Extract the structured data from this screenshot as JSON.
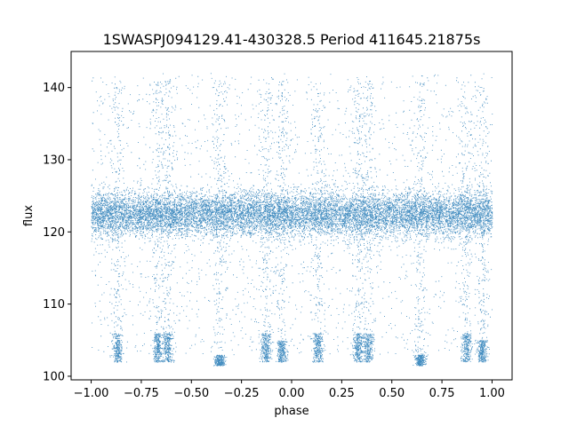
{
  "chart_data": {
    "type": "scatter",
    "title": "1SWASPJ094129.41-430328.5 Period 411645.21875s",
    "xlabel": "phase",
    "ylabel": "flux",
    "xlim": [
      -1.1,
      1.1
    ],
    "ylim": [
      99.5,
      145
    ],
    "xticks": [
      -1.0,
      -0.75,
      -0.5,
      -0.25,
      0.0,
      0.25,
      0.5,
      0.75,
      1.0
    ],
    "xtick_labels": [
      "−1.00",
      "−0.75",
      "−0.50",
      "−0.25",
      "0.00",
      "0.25",
      "0.50",
      "0.75",
      "1.00"
    ],
    "yticks": [
      100,
      110,
      120,
      130,
      140
    ],
    "ytick_labels": [
      "100",
      "110",
      "120",
      "130",
      "140"
    ],
    "grid": false,
    "point_color": "#1f77b4",
    "baseline_flux": 122.5,
    "baseline_scatter": 1.5,
    "phase_range": [
      -1.0,
      1.0
    ],
    "eclipse_clusters": [
      {
        "phase": -0.87,
        "flux_range": [
          102,
          106
        ]
      },
      {
        "phase": -0.67,
        "flux_range": [
          102,
          106
        ]
      },
      {
        "phase": -0.62,
        "flux_range": [
          102,
          106
        ]
      },
      {
        "phase": -0.36,
        "flux_range": [
          101.5,
          103
        ]
      },
      {
        "phase": -0.13,
        "flux_range": [
          102,
          106
        ]
      },
      {
        "phase": -0.05,
        "flux_range": [
          102,
          105
        ]
      },
      {
        "phase": 0.13,
        "flux_range": [
          102,
          106
        ]
      },
      {
        "phase": 0.33,
        "flux_range": [
          102,
          106
        ]
      },
      {
        "phase": 0.38,
        "flux_range": [
          102,
          106
        ]
      },
      {
        "phase": 0.64,
        "flux_range": [
          101.5,
          103
        ]
      },
      {
        "phase": 0.87,
        "flux_range": [
          102,
          106
        ]
      },
      {
        "phase": 0.95,
        "flux_range": [
          102,
          105
        ]
      }
    ]
  }
}
